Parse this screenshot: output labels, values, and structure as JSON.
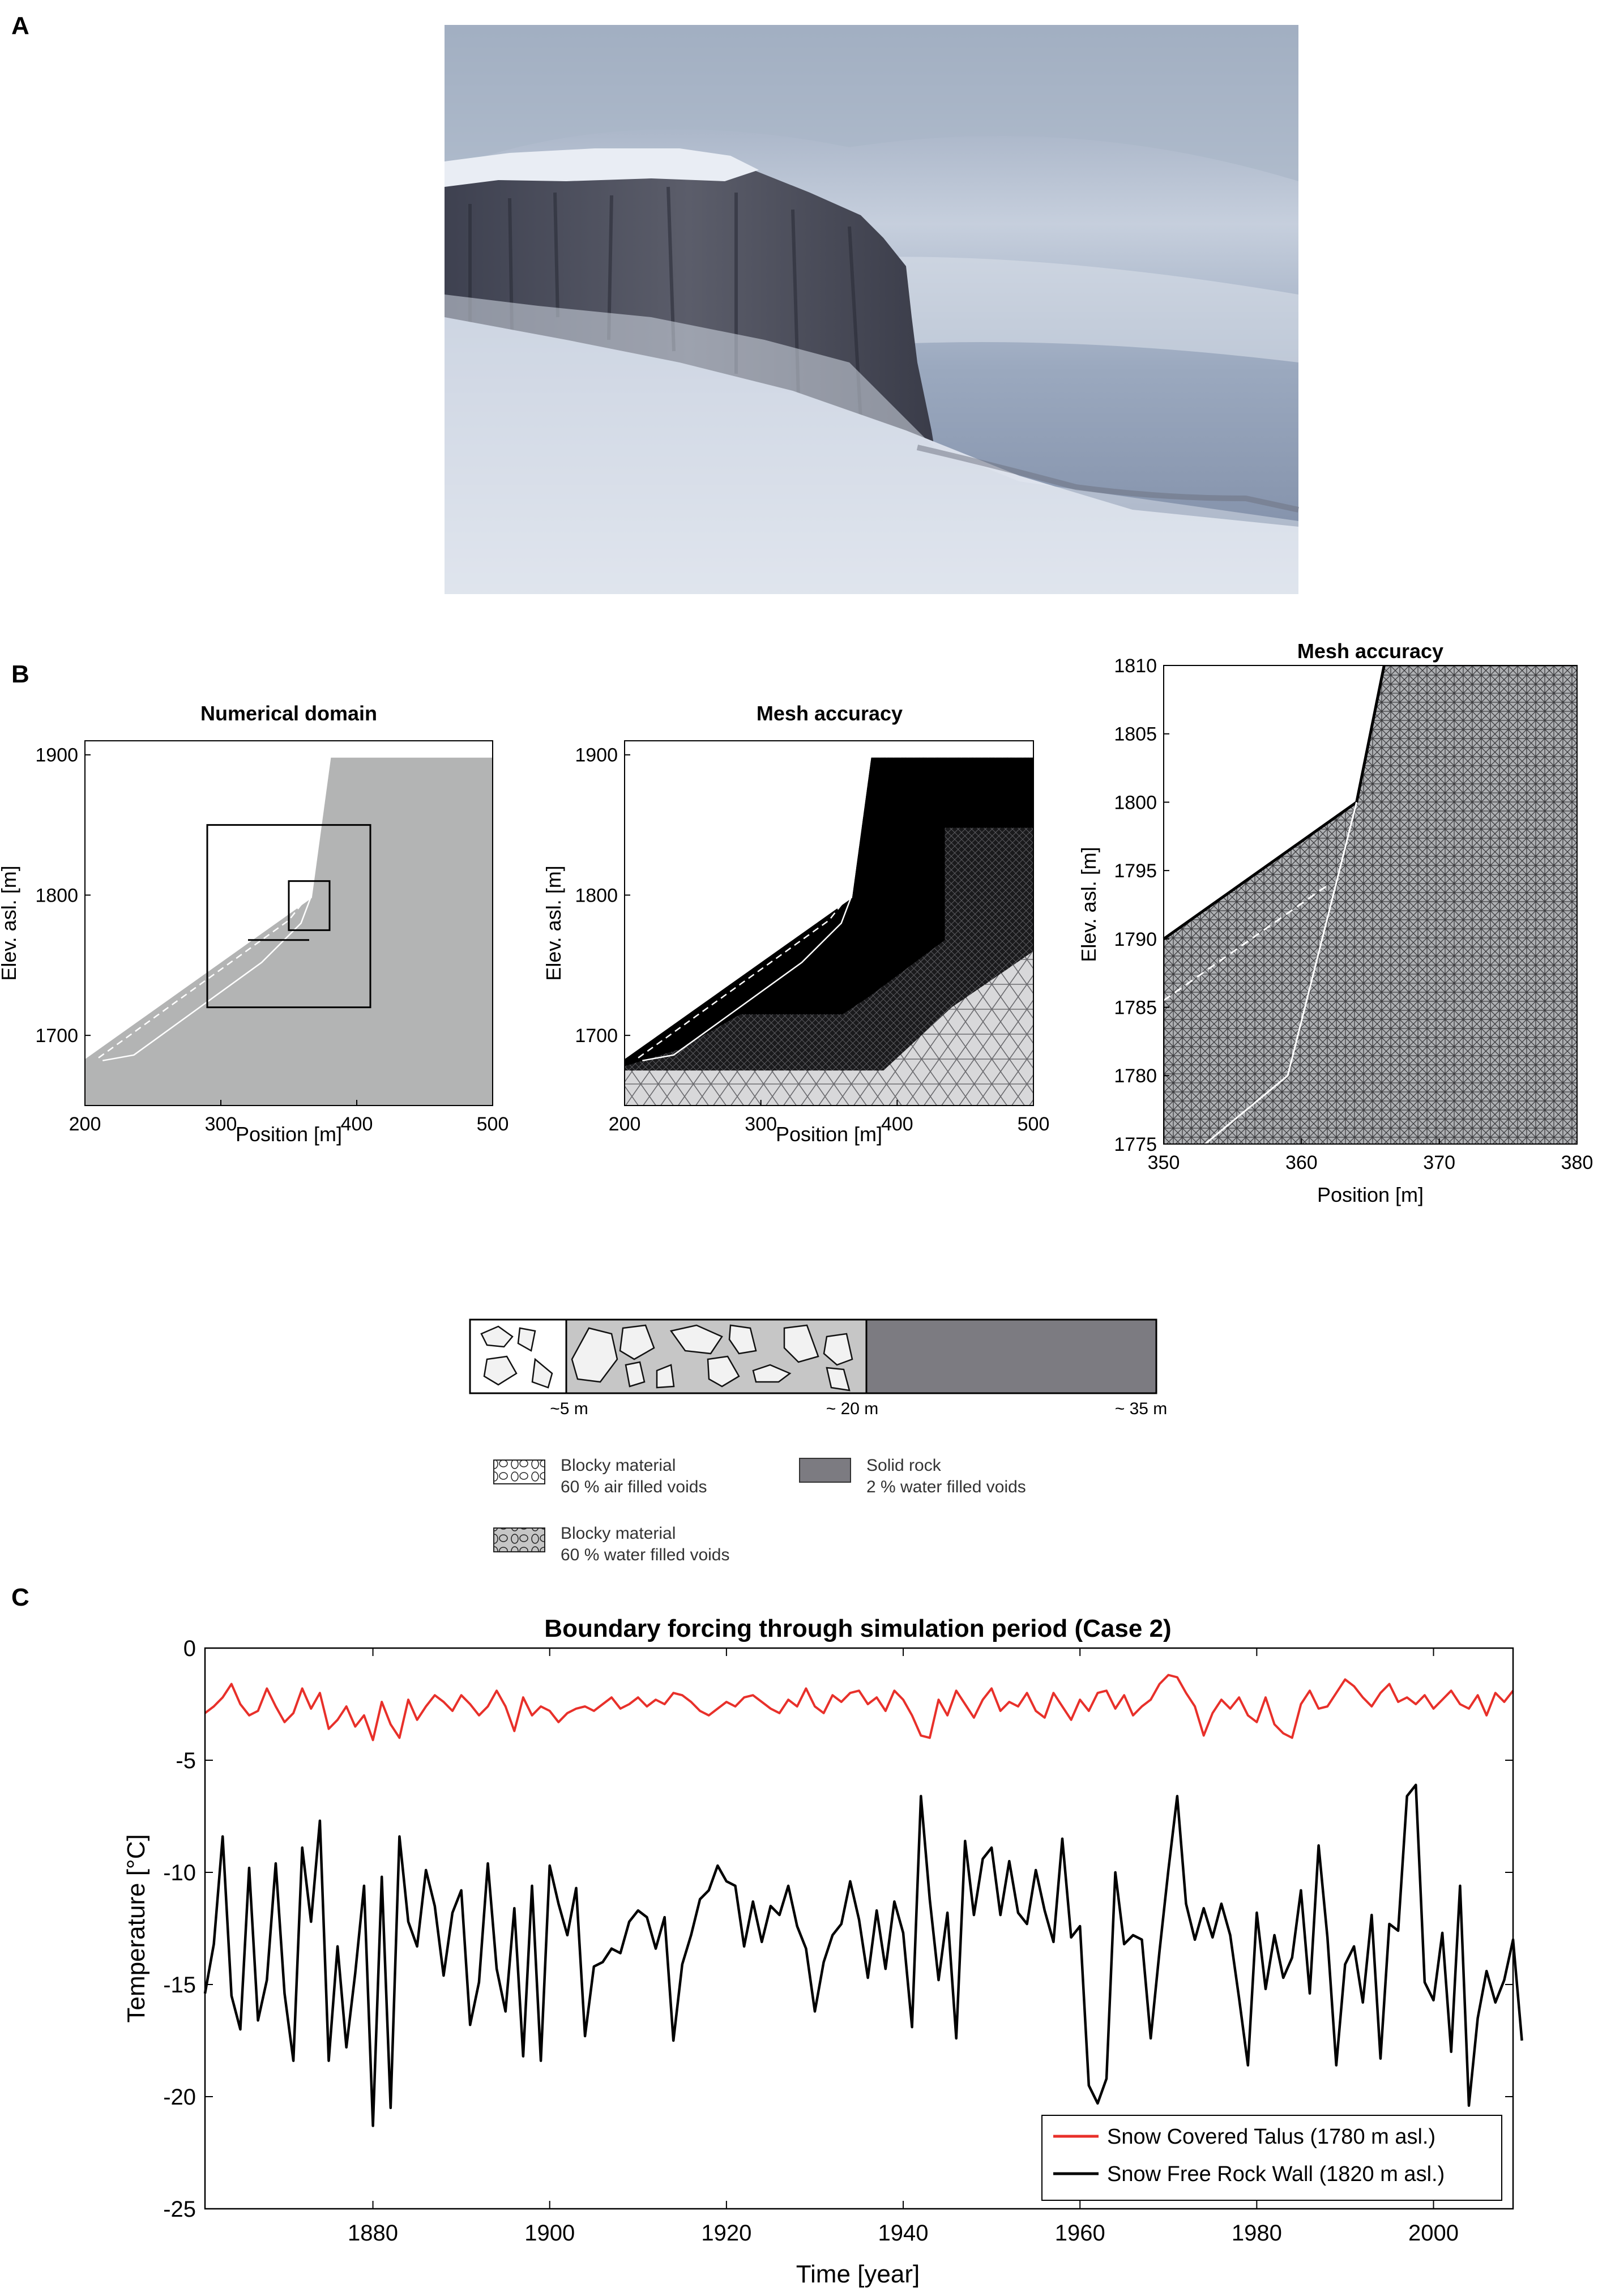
{
  "panels": {
    "a": {
      "letter": "A"
    },
    "b": {
      "letter": "B"
    },
    "c": {
      "letter": "C"
    }
  },
  "domain_plot": {
    "title": "Numerical domain",
    "xlabel": "Position [m]",
    "ylabel": "Elev. asl. [m]",
    "xticks": [
      200,
      300,
      400,
      500
    ],
    "yticks": [
      1700,
      1800,
      1900
    ],
    "xlim": [
      200,
      500
    ],
    "ylim": [
      1650,
      1910
    ],
    "fill_color": "#b3b4b4"
  },
  "mesh_plot": {
    "title": "Mesh accuracy",
    "xlabel": "Position [m]",
    "ylabel": "Elev. asl. [m]",
    "xticks": [
      200,
      300,
      400,
      500
    ],
    "yticks": [
      1700,
      1800,
      1900
    ],
    "xlim": [
      200,
      500
    ],
    "ylim": [
      1650,
      1910
    ]
  },
  "zoom_plot": {
    "title": "Mesh accuracy",
    "xlabel": "Position [m]",
    "ylabel": "Elev. asl. [m]",
    "xticks": [
      350,
      360,
      370,
      380
    ],
    "yticks": [
      1775,
      1780,
      1785,
      1790,
      1795,
      1800,
      1805,
      1810
    ],
    "xlim": [
      350,
      380
    ],
    "ylim": [
      1775,
      1810
    ]
  },
  "layers": {
    "depth_labels": [
      "~5 m",
      "~ 20 m",
      "~ 35 m"
    ],
    "legend": [
      {
        "line1": "Blocky material",
        "line2": "60 % air filled voids"
      },
      {
        "line1": "Solid rock",
        "line2": "2 % water filled voids"
      },
      {
        "line1": "Blocky material",
        "line2": "60 % water filled  voids"
      }
    ],
    "colors": {
      "air_blocky": "#ffffff",
      "water_blocky": "#c6c6c6",
      "solid_rock": "#7c7b81"
    }
  },
  "chart_data": {
    "type": "line",
    "title": "Boundary forcing through simulation period (Case 2)",
    "xlabel": "Time [year]",
    "ylabel": "Temperature [°C]",
    "xlim": [
      1861,
      2009
    ],
    "ylim": [
      -25,
      0
    ],
    "xticks": [
      1880,
      1900,
      1920,
      1940,
      1960,
      1980,
      2000
    ],
    "yticks": [
      0,
      -5,
      -10,
      -15,
      -20,
      -25
    ],
    "legend_position": "bottom-right",
    "x_start": 1861,
    "series": [
      {
        "name": "Snow Covered Talus  (1780 m asl.)",
        "color": "#e8302a",
        "values": [
          -2.9,
          -2.6,
          -2.2,
          -1.6,
          -2.5,
          -3.0,
          -2.8,
          -1.8,
          -2.6,
          -3.3,
          -2.9,
          -1.8,
          -2.7,
          -2.0,
          -3.6,
          -3.2,
          -2.6,
          -3.5,
          -3.0,
          -4.1,
          -2.4,
          -3.4,
          -4.0,
          -2.3,
          -3.2,
          -2.6,
          -2.1,
          -2.4,
          -2.8,
          -2.1,
          -2.5,
          -3.0,
          -2.6,
          -1.9,
          -2.6,
          -3.7,
          -2.2,
          -3.0,
          -2.6,
          -2.8,
          -3.3,
          -2.9,
          -2.7,
          -2.6,
          -2.8,
          -2.5,
          -2.2,
          -2.7,
          -2.5,
          -2.2,
          -2.6,
          -2.3,
          -2.5,
          -2.0,
          -2.1,
          -2.4,
          -2.8,
          -3.0,
          -2.7,
          -2.4,
          -2.6,
          -2.2,
          -2.1,
          -2.4,
          -2.7,
          -2.9,
          -2.3,
          -2.6,
          -1.8,
          -2.6,
          -2.9,
          -2.1,
          -2.4,
          -2.0,
          -1.9,
          -2.5,
          -2.2,
          -2.8,
          -1.9,
          -2.3,
          -3.0,
          -3.9,
          -4.0,
          -2.3,
          -3.0,
          -1.9,
          -2.5,
          -3.1,
          -2.3,
          -1.8,
          -2.8,
          -2.4,
          -2.6,
          -2.0,
          -2.8,
          -3.1,
          -2.0,
          -2.6,
          -3.2,
          -2.3,
          -2.8,
          -2.0,
          -1.9,
          -2.7,
          -2.1,
          -3.0,
          -2.6,
          -2.3,
          -1.6,
          -1.2,
          -1.3,
          -2.0,
          -2.6,
          -3.9,
          -2.9,
          -2.3,
          -2.7,
          -2.2,
          -3.0,
          -3.3,
          -2.2,
          -3.4,
          -3.8,
          -4.0,
          -2.5,
          -1.9,
          -2.7,
          -2.6,
          -2.0,
          -1.4,
          -1.7,
          -2.2,
          -2.6,
          -2.0,
          -1.6,
          -2.4,
          -2.2,
          -2.5,
          -2.1,
          -2.7,
          -2.3,
          -1.9,
          -2.5,
          -2.7,
          -2.1,
          -3.0,
          -2.0,
          -2.4,
          -1.9
        ]
      },
      {
        "name": "Snow Free Rock Wall (1820 m asl.)",
        "color": "#000000",
        "values": [
          -15.4,
          -13.2,
          -8.4,
          -15.5,
          -17.0,
          -9.8,
          -16.6,
          -14.8,
          -9.6,
          -15.4,
          -18.4,
          -8.9,
          -12.2,
          -7.7,
          -18.4,
          -13.3,
          -17.8,
          -14.5,
          -10.6,
          -21.3,
          -10.2,
          -20.5,
          -8.4,
          -12.2,
          -13.3,
          -9.9,
          -11.5,
          -14.6,
          -11.8,
          -10.8,
          -16.8,
          -14.9,
          -9.6,
          -14.3,
          -16.2,
          -11.6,
          -18.2,
          -10.6,
          -18.4,
          -9.7,
          -11.4,
          -12.8,
          -10.7,
          -17.3,
          -14.2,
          -14.0,
          -13.4,
          -13.6,
          -12.2,
          -11.7,
          -12.0,
          -13.4,
          -12.0,
          -17.5,
          -14.1,
          -12.8,
          -11.2,
          -10.8,
          -9.7,
          -10.4,
          -10.6,
          -13.3,
          -11.3,
          -13.1,
          -11.5,
          -11.9,
          -10.6,
          -12.4,
          -13.4,
          -16.2,
          -14.0,
          -12.8,
          -12.3,
          -10.4,
          -12.1,
          -14.7,
          -11.7,
          -14.3,
          -11.3,
          -12.7,
          -16.9,
          -6.6,
          -11.2,
          -14.8,
          -11.8,
          -17.4,
          -8.6,
          -11.9,
          -9.4,
          -8.9,
          -11.9,
          -9.5,
          -11.8,
          -12.3,
          -9.9,
          -11.7,
          -13.1,
          -8.5,
          -12.9,
          -12.4,
          -19.5,
          -20.3,
          -19.2,
          -10.0,
          -13.2,
          -12.8,
          -13.0,
          -17.4,
          -13.5,
          -9.9,
          -6.6,
          -11.4,
          -13.0,
          -11.6,
          -12.9,
          -11.4,
          -12.8,
          -15.6,
          -18.6,
          -11.8,
          -15.2,
          -12.8,
          -14.7,
          -13.8,
          -10.8,
          -15.4,
          -8.8,
          -12.9,
          -18.6,
          -14.1,
          -13.3,
          -15.8,
          -11.9,
          -18.3,
          -12.3,
          -12.6,
          -6.6,
          -6.1,
          -14.9,
          -15.7,
          -12.7,
          -18.0,
          -10.6,
          -20.4,
          -16.5,
          -14.4,
          -15.8,
          -14.8,
          -13.0,
          -17.5
        ]
      }
    ]
  }
}
